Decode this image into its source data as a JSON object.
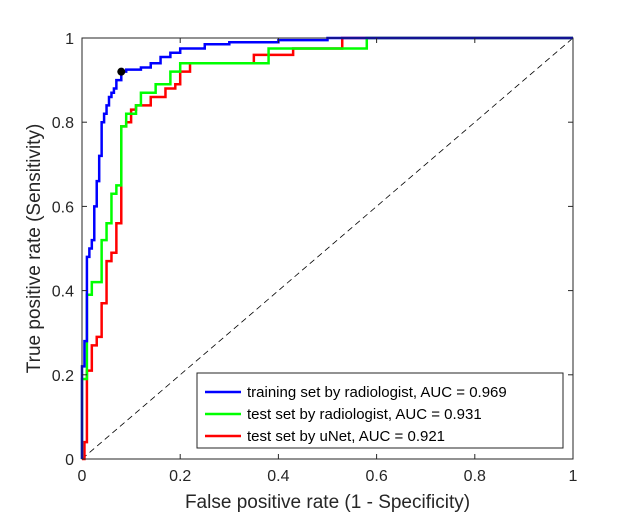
{
  "chart_data": {
    "type": "line",
    "title": "",
    "xlabel": "False positive rate (1 - Specificity)",
    "ylabel": "True positive rate (Sensitivity)",
    "xlim": [
      0,
      1
    ],
    "ylim": [
      0,
      1
    ],
    "xticks": [
      0,
      0.2,
      0.4,
      0.6,
      0.8,
      1
    ],
    "yticks": [
      0,
      0.2,
      0.4,
      0.6,
      0.8,
      1
    ],
    "xtick_labels": [
      "0",
      "0.2",
      "0.4",
      "0.6",
      "0.8",
      "1"
    ],
    "ytick_labels": [
      "0",
      "0.2",
      "0.4",
      "0.6",
      "0.8",
      "1"
    ],
    "grid": false,
    "legend_position": "bottom-right",
    "reference_line": {
      "style": "dashed",
      "color": "#000000",
      "points": [
        [
          0,
          0
        ],
        [
          1,
          1
        ]
      ]
    },
    "operating_point": {
      "x": 0.08,
      "y": 0.92,
      "color": "#000000"
    },
    "series": [
      {
        "name": "training set by radiologist, AUC = 0.969",
        "color": "#0000ff",
        "points": [
          [
            0,
            0
          ],
          [
            0,
            0.22
          ],
          [
            0.005,
            0.22
          ],
          [
            0.005,
            0.28
          ],
          [
            0.01,
            0.28
          ],
          [
            0.01,
            0.48
          ],
          [
            0.015,
            0.48
          ],
          [
            0.015,
            0.5
          ],
          [
            0.02,
            0.5
          ],
          [
            0.02,
            0.52
          ],
          [
            0.025,
            0.52
          ],
          [
            0.025,
            0.6
          ],
          [
            0.03,
            0.6
          ],
          [
            0.03,
            0.66
          ],
          [
            0.035,
            0.66
          ],
          [
            0.035,
            0.72
          ],
          [
            0.04,
            0.72
          ],
          [
            0.04,
            0.8
          ],
          [
            0.045,
            0.8
          ],
          [
            0.045,
            0.82
          ],
          [
            0.05,
            0.82
          ],
          [
            0.05,
            0.84
          ],
          [
            0.055,
            0.84
          ],
          [
            0.055,
            0.86
          ],
          [
            0.06,
            0.86
          ],
          [
            0.06,
            0.87
          ],
          [
            0.065,
            0.87
          ],
          [
            0.065,
            0.88
          ],
          [
            0.07,
            0.88
          ],
          [
            0.07,
            0.9
          ],
          [
            0.08,
            0.9
          ],
          [
            0.08,
            0.92
          ],
          [
            0.09,
            0.92
          ],
          [
            0.09,
            0.925
          ],
          [
            0.12,
            0.925
          ],
          [
            0.12,
            0.93
          ],
          [
            0.14,
            0.93
          ],
          [
            0.14,
            0.94
          ],
          [
            0.16,
            0.94
          ],
          [
            0.16,
            0.955
          ],
          [
            0.18,
            0.955
          ],
          [
            0.18,
            0.965
          ],
          [
            0.2,
            0.965
          ],
          [
            0.2,
            0.975
          ],
          [
            0.25,
            0.975
          ],
          [
            0.25,
            0.985
          ],
          [
            0.3,
            0.985
          ],
          [
            0.3,
            0.99
          ],
          [
            0.4,
            0.99
          ],
          [
            0.4,
            0.995
          ],
          [
            0.5,
            0.995
          ],
          [
            0.5,
            1
          ],
          [
            0.6,
            1
          ],
          [
            1,
            1
          ]
        ]
      },
      {
        "name": "test set by radiologist, AUC = 0.931",
        "color": "#00ff00",
        "points": [
          [
            0,
            0
          ],
          [
            0,
            0.19
          ],
          [
            0.01,
            0.19
          ],
          [
            0.01,
            0.39
          ],
          [
            0.02,
            0.39
          ],
          [
            0.02,
            0.42
          ],
          [
            0.04,
            0.42
          ],
          [
            0.04,
            0.52
          ],
          [
            0.05,
            0.52
          ],
          [
            0.05,
            0.56
          ],
          [
            0.06,
            0.56
          ],
          [
            0.06,
            0.63
          ],
          [
            0.07,
            0.63
          ],
          [
            0.07,
            0.65
          ],
          [
            0.08,
            0.65
          ],
          [
            0.08,
            0.79
          ],
          [
            0.09,
            0.79
          ],
          [
            0.09,
            0.82
          ],
          [
            0.11,
            0.82
          ],
          [
            0.11,
            0.84
          ],
          [
            0.12,
            0.84
          ],
          [
            0.12,
            0.87
          ],
          [
            0.15,
            0.87
          ],
          [
            0.15,
            0.89
          ],
          [
            0.18,
            0.89
          ],
          [
            0.18,
            0.92
          ],
          [
            0.2,
            0.92
          ],
          [
            0.2,
            0.94
          ],
          [
            0.38,
            0.94
          ],
          [
            0.38,
            0.975
          ],
          [
            0.58,
            0.975
          ],
          [
            0.58,
            1
          ],
          [
            1,
            1
          ]
        ]
      },
      {
        "name": "test set by uNet, AUC = 0.921",
        "color": "#ff0000",
        "points": [
          [
            0,
            0
          ],
          [
            0.005,
            0
          ],
          [
            0.005,
            0.04
          ],
          [
            0.01,
            0.04
          ],
          [
            0.01,
            0.21
          ],
          [
            0.02,
            0.21
          ],
          [
            0.02,
            0.27
          ],
          [
            0.03,
            0.27
          ],
          [
            0.03,
            0.29
          ],
          [
            0.04,
            0.29
          ],
          [
            0.04,
            0.37
          ],
          [
            0.05,
            0.37
          ],
          [
            0.05,
            0.47
          ],
          [
            0.06,
            0.47
          ],
          [
            0.06,
            0.49
          ],
          [
            0.07,
            0.49
          ],
          [
            0.07,
            0.56
          ],
          [
            0.08,
            0.56
          ],
          [
            0.08,
            0.79
          ],
          [
            0.09,
            0.79
          ],
          [
            0.09,
            0.8
          ],
          [
            0.1,
            0.8
          ],
          [
            0.1,
            0.83
          ],
          [
            0.11,
            0.83
          ],
          [
            0.11,
            0.84
          ],
          [
            0.14,
            0.84
          ],
          [
            0.14,
            0.86
          ],
          [
            0.17,
            0.86
          ],
          [
            0.17,
            0.88
          ],
          [
            0.19,
            0.88
          ],
          [
            0.19,
            0.89
          ],
          [
            0.2,
            0.89
          ],
          [
            0.2,
            0.92
          ],
          [
            0.22,
            0.92
          ],
          [
            0.22,
            0.94
          ],
          [
            0.35,
            0.94
          ],
          [
            0.35,
            0.96
          ],
          [
            0.43,
            0.96
          ],
          [
            0.43,
            0.975
          ],
          [
            0.53,
            0.975
          ],
          [
            0.53,
            1
          ],
          [
            1,
            1
          ]
        ]
      }
    ]
  }
}
